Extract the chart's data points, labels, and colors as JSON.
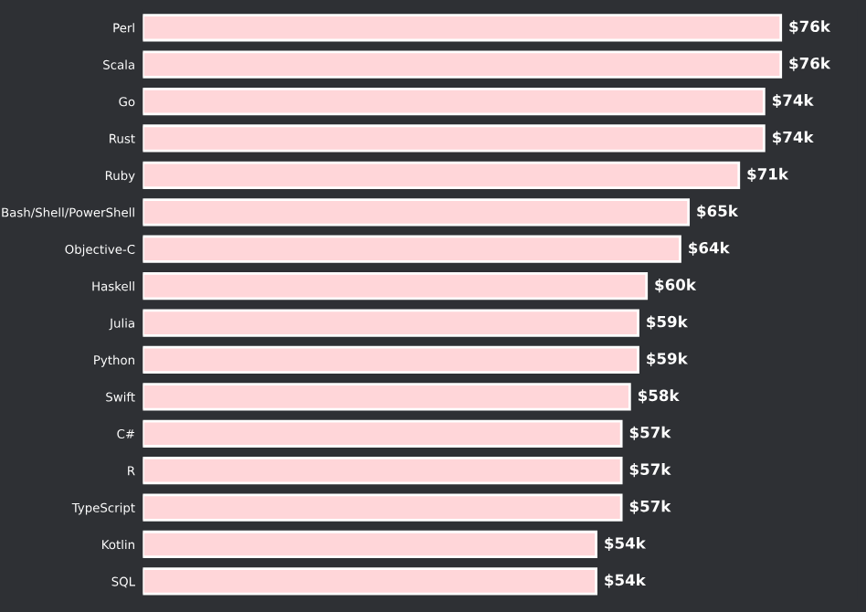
{
  "chart_data": {
    "type": "bar",
    "orientation": "horizontal",
    "categories": [
      "Perl",
      "Scala",
      "Go",
      "Rust",
      "Ruby",
      "Bash/Shell/PowerShell",
      "Objective-C",
      "Haskell",
      "Julia",
      "Python",
      "Swift",
      "C#",
      "R",
      "TypeScript",
      "Kotlin",
      "SQL"
    ],
    "values": [
      76,
      76,
      74,
      74,
      71,
      65,
      64,
      60,
      59,
      59,
      58,
      57,
      57,
      57,
      54,
      54
    ],
    "value_labels": [
      "$76k",
      "$76k",
      "$74k",
      "$74k",
      "$71k",
      "$65k",
      "$64k",
      "$60k",
      "$59k",
      "$59k",
      "$58k",
      "$57k",
      "$57k",
      "$57k",
      "$54k",
      "$54k"
    ],
    "color": "#ffd6d9",
    "grid": false,
    "legend": false
  }
}
